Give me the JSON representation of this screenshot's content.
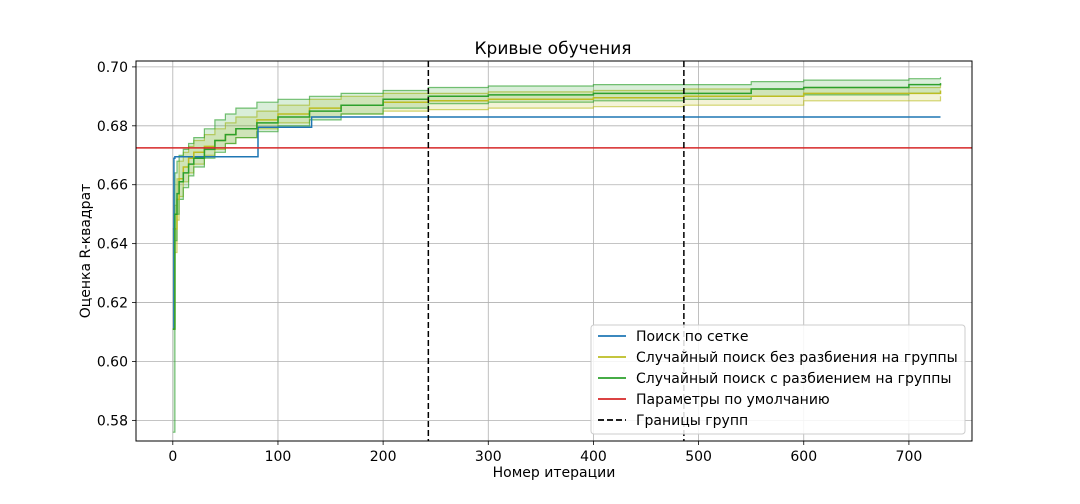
{
  "chart_data": {
    "type": "line",
    "title": "Кривые обучения",
    "xlabel": "Номер итерации",
    "ylabel": "Оценка R-квадрат",
    "xlim": [
      -35,
      760
    ],
    "ylim": [
      0.573,
      0.702
    ],
    "xticks": [
      0,
      100,
      200,
      300,
      400,
      500,
      600,
      700
    ],
    "yticks": [
      0.58,
      0.6,
      0.62,
      0.64,
      0.66,
      0.68,
      0.7
    ],
    "ytick_labels": [
      "0.58",
      "0.60",
      "0.62",
      "0.64",
      "0.66",
      "0.68",
      "0.70"
    ],
    "grid": true,
    "legend_position": "lower-right",
    "series": [
      {
        "name": "Поиск по сетке",
        "color": "#1f77b4",
        "style": "solid",
        "x": [
          0,
          1,
          2,
          3,
          80,
          81,
          130,
          132,
          730
        ],
        "y": [
          0.611,
          0.669,
          0.6695,
          0.6695,
          0.6695,
          0.6795,
          0.6795,
          0.683,
          0.683
        ]
      },
      {
        "name": "Случайный поиск без разбиения на группы",
        "color": "#bcbd22",
        "style": "solid",
        "x": [
          0,
          2,
          4,
          6,
          10,
          15,
          20,
          30,
          40,
          50,
          60,
          80,
          100,
          130,
          160,
          200,
          243,
          300,
          400,
          486,
          600,
          730
        ],
        "y": [
          0.611,
          0.645,
          0.655,
          0.662,
          0.666,
          0.669,
          0.671,
          0.673,
          0.675,
          0.677,
          0.679,
          0.682,
          0.684,
          0.686,
          0.687,
          0.688,
          0.6885,
          0.689,
          0.6895,
          0.69,
          0.691,
          0.692
        ],
        "lower": [
          0.611,
          0.637,
          0.648,
          0.656,
          0.661,
          0.664,
          0.667,
          0.67,
          0.672,
          0.674,
          0.676,
          0.679,
          0.681,
          0.683,
          0.684,
          0.685,
          0.6855,
          0.686,
          0.6865,
          0.687,
          0.6885,
          0.69
        ],
        "upper": [
          0.611,
          0.653,
          0.662,
          0.668,
          0.671,
          0.673,
          0.675,
          0.677,
          0.679,
          0.681,
          0.683,
          0.685,
          0.687,
          0.689,
          0.69,
          0.691,
          0.691,
          0.6915,
          0.692,
          0.6925,
          0.693,
          0.694
        ]
      },
      {
        "name": "Случайный поиск с разбиением на группы",
        "color": "#2ca02c",
        "style": "solid",
        "x": [
          0,
          2,
          4,
          6,
          10,
          15,
          20,
          30,
          40,
          50,
          60,
          80,
          100,
          130,
          160,
          200,
          243,
          300,
          400,
          486,
          550,
          600,
          700,
          730
        ],
        "y": [
          0.611,
          0.65,
          0.657,
          0.661,
          0.664,
          0.667,
          0.669,
          0.672,
          0.675,
          0.677,
          0.679,
          0.681,
          0.683,
          0.685,
          0.687,
          0.689,
          0.69,
          0.6905,
          0.691,
          0.691,
          0.6925,
          0.693,
          0.694,
          0.6945
        ],
        "lower": [
          0.576,
          0.641,
          0.65,
          0.655,
          0.659,
          0.663,
          0.666,
          0.669,
          0.671,
          0.674,
          0.676,
          0.678,
          0.68,
          0.682,
          0.684,
          0.686,
          0.6875,
          0.688,
          0.6885,
          0.689,
          0.69,
          0.6905,
          0.691,
          0.691
        ],
        "upper": [
          0.645,
          0.664,
          0.668,
          0.67,
          0.672,
          0.674,
          0.676,
          0.679,
          0.682,
          0.684,
          0.686,
          0.688,
          0.689,
          0.69,
          0.691,
          0.692,
          0.693,
          0.6935,
          0.694,
          0.694,
          0.695,
          0.6955,
          0.696,
          0.6965
        ]
      },
      {
        "name": "Параметры по умолчанию",
        "color": "#d62728",
        "style": "solid",
        "y_constant": 0.6725
      },
      {
        "name": "Границы групп",
        "color": "#000000",
        "style": "dashed",
        "x_positions": [
          243,
          486
        ]
      }
    ]
  }
}
